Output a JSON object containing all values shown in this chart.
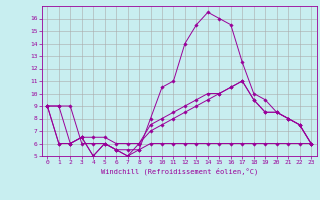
{
  "xlabel": "Windchill (Refroidissement éolien,°C)",
  "background_color": "#c8eef0",
  "grid_color": "#aaaaaa",
  "line_color": "#990099",
  "xlim": [
    -0.5,
    23.5
  ],
  "ylim": [
    5,
    17
  ],
  "yticks": [
    5,
    6,
    7,
    8,
    9,
    10,
    11,
    12,
    13,
    14,
    15,
    16
  ],
  "xticks": [
    0,
    1,
    2,
    3,
    4,
    5,
    6,
    7,
    8,
    9,
    10,
    11,
    12,
    13,
    14,
    15,
    16,
    17,
    18,
    19,
    20,
    21,
    22,
    23
  ],
  "series": [
    [
      9.0,
      9.0,
      9.0,
      6.0,
      6.0,
      6.0,
      5.5,
      5.5,
      5.5,
      8.0,
      10.5,
      11.0,
      14.0,
      15.5,
      16.5,
      16.0,
      15.5,
      12.5,
      10.0,
      9.5,
      8.5,
      8.0,
      7.5,
      6.0
    ],
    [
      9.0,
      9.0,
      6.0,
      6.5,
      6.5,
      6.5,
      6.0,
      6.0,
      6.0,
      7.5,
      8.0,
      8.5,
      9.0,
      9.5,
      10.0,
      10.0,
      10.5,
      11.0,
      9.5,
      8.5,
      8.5,
      8.0,
      7.5,
      6.0
    ],
    [
      9.0,
      6.0,
      6.0,
      6.5,
      5.0,
      6.0,
      5.5,
      5.0,
      5.5,
      6.0,
      6.0,
      6.0,
      6.0,
      6.0,
      6.0,
      6.0,
      6.0,
      6.0,
      6.0,
      6.0,
      6.0,
      6.0,
      6.0,
      6.0
    ],
    [
      9.0,
      6.0,
      6.0,
      6.5,
      5.0,
      6.0,
      5.5,
      5.0,
      6.0,
      7.0,
      7.5,
      8.0,
      8.5,
      9.0,
      9.5,
      10.0,
      10.5,
      11.0,
      9.5,
      8.5,
      8.5,
      8.0,
      7.5,
      6.0
    ]
  ],
  "figsize": [
    3.2,
    2.0
  ],
  "dpi": 100
}
